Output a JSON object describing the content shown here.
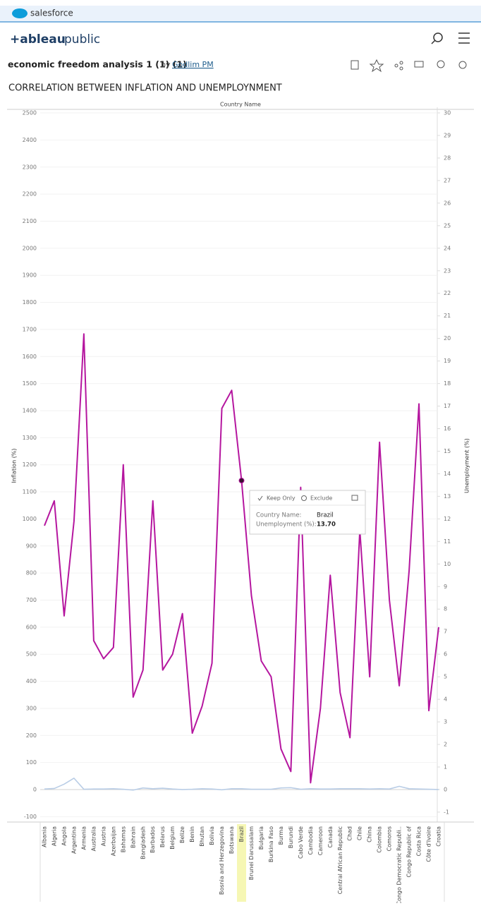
{
  "browser": {
    "brand": "salesforce"
  },
  "header": {
    "logo": "+ableau",
    "logo_suffix": "public"
  },
  "workbook": {
    "title": "economic freedom analysis 1 (1) (1)",
    "by": "by",
    "author": "Godlim PM"
  },
  "tooltip": {
    "keep_only": "Keep Only",
    "exclude": "Exclude",
    "rows": [
      {
        "label": "Country Name:",
        "value": "Brazil"
      },
      {
        "label": "Unemployment (%):",
        "value": "13.70"
      }
    ]
  },
  "chart_data": {
    "type": "line",
    "title": "CORRELATION BETWEEN INFLATION AND UNEMPLOYNMENT",
    "x_label": "Country Name",
    "y_label": "Inflation (%)",
    "y2_label": "Unemployment (%)",
    "categories": [
      "Albania",
      "Algeria",
      "Angola",
      "Argentina",
      "Armenia",
      "Australia",
      "Austria",
      "Azerbaijan",
      "Bahamas",
      "Bahrain",
      "Bangladesh",
      "Barbados",
      "Belarus",
      "Belgium",
      "Belize",
      "Benin",
      "Bhutan",
      "Bolivia",
      "Bosnia and Herzegovina",
      "Botswana",
      "Brazil",
      "Brunei Darussalam",
      "Bulgaria",
      "Burkina Faso",
      "Burma",
      "Burundi",
      "Cabo Verde",
      "Cambodia",
      "Cameroon",
      "Canada",
      "Central African Republic",
      "Chad",
      "Chile",
      "China",
      "Colombia",
      "Comoros",
      "Congo Democratic Republi..",
      "Congo Republic of",
      "Costa Rica",
      "Côte d'Ivoire",
      "Croatia"
    ],
    "series": [
      {
        "name": "Inflation (%)",
        "color": "#b9cde6",
        "axis": "y",
        "values": [
          2,
          4,
          20,
          42,
          1,
          2,
          2,
          3,
          1,
          -2,
          6,
          3,
          5,
          2,
          0,
          1,
          3,
          2,
          -1,
          3,
          3,
          1,
          1,
          1,
          6,
          7,
          1,
          3,
          2,
          2,
          3,
          3,
          3,
          2,
          3,
          2,
          12,
          3,
          2,
          1,
          0
        ]
      },
      {
        "name": "Unemployment (%)",
        "color": "#b5169f",
        "axis": "y2",
        "values": [
          11.7,
          12.8,
          7.7,
          11.9,
          20.2,
          6.6,
          5.8,
          6.3,
          14.4,
          4.1,
          5.3,
          12.8,
          5.3,
          6.0,
          7.8,
          2.5,
          3.7,
          5.6,
          16.9,
          17.7,
          13.7,
          8.6,
          5.7,
          5.0,
          1.8,
          0.8,
          13.4,
          0.3,
          3.6,
          9.5,
          4.3,
          2.3,
          11.5,
          5.0,
          15.4,
          8.4,
          4.6,
          9.7,
          17.1,
          3.5,
          7.2
        ]
      }
    ],
    "highlight": "Brazil",
    "ylim": [
      -120,
      2521
    ],
    "yticks": [
      -100,
      0,
      100,
      200,
      300,
      400,
      500,
      600,
      700,
      800,
      900,
      1000,
      1100,
      1200,
      1300,
      1400,
      1500,
      1600,
      1700,
      1800,
      1900,
      2000,
      2100,
      2200,
      2300,
      2400,
      2500
    ],
    "y2lim": [
      -1.44,
      30.25
    ],
    "y2ticks": [
      -1,
      0,
      1,
      2,
      3,
      4,
      5,
      6,
      7,
      8,
      9,
      10,
      11,
      12,
      13,
      14,
      15,
      16,
      17,
      18,
      19,
      20,
      21,
      22,
      23,
      24,
      25,
      26,
      27,
      28,
      29,
      30
    ],
    "grid": true
  }
}
